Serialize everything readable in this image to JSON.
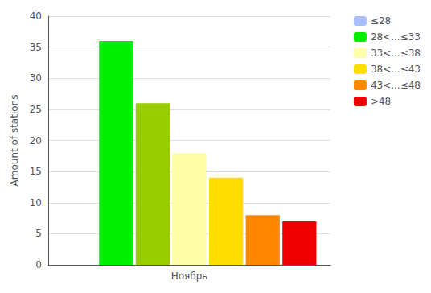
{
  "chart_data": {
    "type": "bar",
    "ylabel": "Amount of stations",
    "categories": [
      "Ноябрь"
    ],
    "series": [
      {
        "name": "≤28",
        "color": "#aabfff",
        "values": [
          0
        ]
      },
      {
        "name": "28<...≤33",
        "color": "#00ee00",
        "values": [
          36
        ]
      },
      {
        "color": "#99cc00",
        "values": [
          26
        ]
      },
      {
        "name": "33<...≤38",
        "color": "#ffffaa",
        "values": [
          18
        ]
      },
      {
        "name": "38<...≤43",
        "color": "#ffdd00",
        "values": [
          14
        ]
      },
      {
        "name": "43<...≤48",
        "color": "#ff8800",
        "values": [
          8
        ]
      },
      {
        "name": ">48",
        "color": "#ee0000",
        "values": [
          7
        ]
      }
    ],
    "ylim": [
      0,
      40
    ],
    "yticks": [
      0,
      5,
      10,
      15,
      20,
      25,
      30,
      35,
      40
    ],
    "grid": true,
    "legend": "upper right"
  }
}
